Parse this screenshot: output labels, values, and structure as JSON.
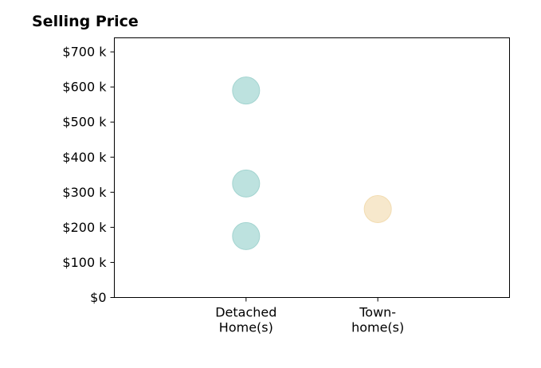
{
  "chart_data": {
    "type": "scatter",
    "title": "Selling Price",
    "xlabel": "",
    "ylabel": "",
    "categories": [
      [
        "Detached",
        "Home(s)"
      ],
      [
        "Town-",
        "home(s)"
      ]
    ],
    "y_ticks": [
      0,
      100,
      200,
      300,
      400,
      500,
      600,
      700
    ],
    "y_tick_labels": [
      "$0",
      "$100 k",
      "$200 k",
      "$300 k",
      "$400 k",
      "$500 k",
      "$600 k",
      "$700 k"
    ],
    "ylim": [
      0,
      740
    ],
    "xlim": [
      -1,
      2
    ],
    "grid": false,
    "points": [
      {
        "category_index": 0,
        "y": 590,
        "color": "#bde2df",
        "edge": "#a3d4d0"
      },
      {
        "category_index": 0,
        "y": 325,
        "color": "#bde2df",
        "edge": "#a3d4d0"
      },
      {
        "category_index": 0,
        "y": 175,
        "color": "#bde2df",
        "edge": "#a3d4d0"
      },
      {
        "category_index": 1,
        "y": 252,
        "color": "#f7e8cc",
        "edge": "#f2dcb1"
      }
    ]
  }
}
